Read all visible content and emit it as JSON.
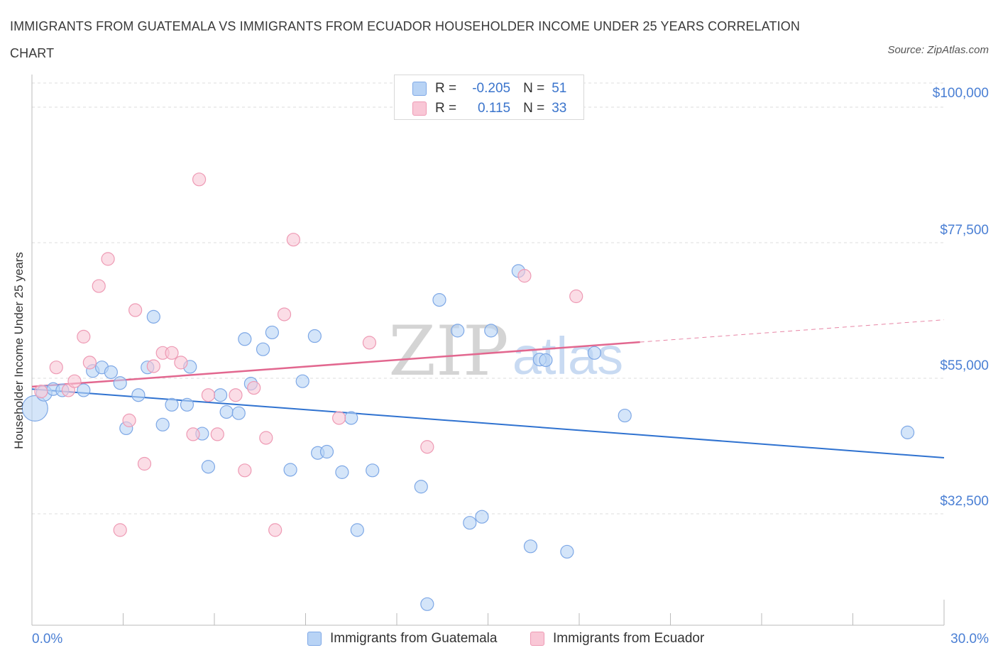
{
  "title": "IMMIGRANTS FROM GUATEMALA VS IMMIGRANTS FROM ECUADOR HOUSEHOLDER INCOME UNDER 25 YEARS CORRELATION CHART",
  "source": "Source: ZipAtlas.com",
  "watermark": {
    "zip": "ZIP",
    "atlas": "atlas"
  },
  "legend": {
    "r_label": "R =",
    "n_label": "N =",
    "rows": [
      {
        "r": "-0.205",
        "n": "51",
        "color": "blue"
      },
      {
        "r": "0.115",
        "n": "33",
        "color": "pink"
      }
    ]
  },
  "colors": {
    "blue_fill": "#b8d3f5",
    "blue_stroke": "#7ea8e6",
    "blue_line": "#2f72d0",
    "pink_fill": "#f9c7d6",
    "pink_stroke": "#ee9ab4",
    "pink_line": "#e2678f",
    "tick_label": "#4a7fd4",
    "grid": "#dcdcdc"
  },
  "chart_data": {
    "type": "scatter",
    "title": "IMMIGRANTS FROM GUATEMALA VS IMMIGRANTS FROM ECUADOR HOUSEHOLDER INCOME UNDER 25 YEARS CORRELATION CHART",
    "xlabel": "",
    "ylabel": "Householder Income Under 25 years",
    "xlim": [
      0,
      30
    ],
    "ylim": [
      14000,
      104000
    ],
    "x_tick_labels": [
      "0.0%",
      "30.0%"
    ],
    "y_ticks": [
      {
        "value": 100000,
        "label": "$100,000"
      },
      {
        "value": 77500,
        "label": "$77,500"
      },
      {
        "value": 55000,
        "label": "$55,000"
      },
      {
        "value": 32500,
        "label": "$32,500"
      }
    ],
    "grid": "horizontal dashed",
    "legend_position": "bottom-center",
    "series": [
      {
        "name": "Immigrants from Guatemala",
        "color": "blue",
        "trend": {
          "x": [
            0,
            30
          ],
          "y": [
            53200,
            41800
          ],
          "dashed_from": null
        },
        "points": [
          [
            0.1,
            50000,
            18
          ],
          [
            0.4,
            52500,
            11
          ],
          [
            0.7,
            53200,
            9
          ],
          [
            1.0,
            53000,
            9
          ],
          [
            1.7,
            53000,
            9
          ],
          [
            2.0,
            56200,
            9
          ],
          [
            2.3,
            56800,
            9
          ],
          [
            2.6,
            56000,
            9
          ],
          [
            2.9,
            54200,
            9
          ],
          [
            3.1,
            46700,
            9
          ],
          [
            3.5,
            52200,
            9
          ],
          [
            3.8,
            56800,
            9
          ],
          [
            4.0,
            65200,
            9
          ],
          [
            4.3,
            47300,
            9
          ],
          [
            4.6,
            50600,
            9
          ],
          [
            5.1,
            50600,
            9
          ],
          [
            5.2,
            56900,
            9
          ],
          [
            5.6,
            45800,
            9
          ],
          [
            5.8,
            40300,
            9
          ],
          [
            6.2,
            52200,
            9
          ],
          [
            6.4,
            49400,
            9
          ],
          [
            6.8,
            49200,
            9
          ],
          [
            7.0,
            61500,
            9
          ],
          [
            7.2,
            54100,
            9
          ],
          [
            7.6,
            59800,
            9
          ],
          [
            7.9,
            62600,
            9
          ],
          [
            8.5,
            39800,
            9
          ],
          [
            8.9,
            54500,
            9
          ],
          [
            9.3,
            62000,
            9
          ],
          [
            9.4,
            42600,
            9
          ],
          [
            9.7,
            42800,
            9
          ],
          [
            10.2,
            39400,
            9
          ],
          [
            10.5,
            48400,
            9
          ],
          [
            10.7,
            29800,
            9
          ],
          [
            11.2,
            39700,
            9
          ],
          [
            12.8,
            37000,
            9
          ],
          [
            13.0,
            17500,
            9
          ],
          [
            13.4,
            68000,
            9
          ],
          [
            14.0,
            62900,
            9
          ],
          [
            14.4,
            31000,
            9
          ],
          [
            14.8,
            32000,
            9
          ],
          [
            15.1,
            62900,
            9
          ],
          [
            16.0,
            72800,
            9
          ],
          [
            16.4,
            27100,
            9
          ],
          [
            16.7,
            58100,
            9
          ],
          [
            16.9,
            58000,
            9
          ],
          [
            17.6,
            26200,
            9
          ],
          [
            18.5,
            59200,
            9
          ],
          [
            19.5,
            48800,
            9
          ],
          [
            28.8,
            46000,
            9
          ]
        ]
      },
      {
        "name": "Immigrants from Ecuador",
        "color": "pink",
        "trend": {
          "x": [
            0,
            30
          ],
          "y": [
            53600,
            64700
          ],
          "dashed_from": 20
        },
        "points": [
          [
            0.3,
            52800,
            9
          ],
          [
            0.8,
            56800,
            9
          ],
          [
            1.2,
            53000,
            9
          ],
          [
            1.4,
            54500,
            9
          ],
          [
            1.7,
            61900,
            9
          ],
          [
            1.9,
            57600,
            9
          ],
          [
            2.2,
            70300,
            9
          ],
          [
            2.5,
            74800,
            9
          ],
          [
            2.9,
            29800,
            9
          ],
          [
            3.2,
            48000,
            9
          ],
          [
            3.4,
            66300,
            9
          ],
          [
            3.7,
            40800,
            9
          ],
          [
            4.0,
            57000,
            9
          ],
          [
            4.3,
            59200,
            9
          ],
          [
            4.6,
            59200,
            9
          ],
          [
            4.9,
            57600,
            9
          ],
          [
            5.3,
            45700,
            9
          ],
          [
            5.5,
            88000,
            9
          ],
          [
            5.8,
            52200,
            9
          ],
          [
            6.1,
            45700,
            9
          ],
          [
            6.7,
            52200,
            9
          ],
          [
            7.0,
            39700,
            9
          ],
          [
            7.3,
            53400,
            9
          ],
          [
            7.7,
            45100,
            9
          ],
          [
            8.0,
            29800,
            9
          ],
          [
            8.3,
            65600,
            9
          ],
          [
            8.6,
            78000,
            9
          ],
          [
            10.1,
            48400,
            9
          ],
          [
            11.1,
            60900,
            9
          ],
          [
            13.0,
            43600,
            9
          ],
          [
            16.2,
            72000,
            9
          ],
          [
            17.9,
            68600,
            9
          ]
        ]
      }
    ]
  }
}
